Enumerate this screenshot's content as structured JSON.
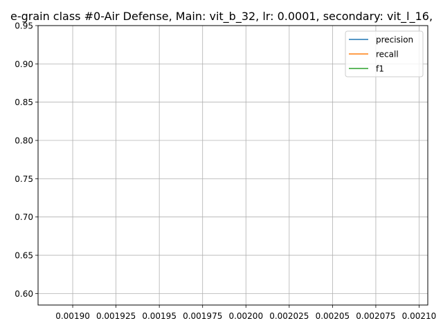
{
  "chart_data": {
    "type": "line",
    "title": "e-grain class #0-Air Defense, Main: vit_b_32, lr: 0.0001, secondary: vit_l_16,",
    "xlabel": "",
    "ylabel": "",
    "xlim": [
      0.00188,
      0.002105
    ],
    "ylim": [
      0.585,
      0.95
    ],
    "x_ticks": [
      0.0019,
      0.001925,
      0.00195,
      0.001975,
      0.002,
      0.002025,
      0.00205,
      0.002075,
      0.0021
    ],
    "x_tick_labels": [
      "0.00190",
      "0.001925",
      "0.00195",
      "0.001975",
      "0.00200",
      "0.002025",
      "0.00205",
      "0.002075",
      "0.00210"
    ],
    "y_ticks": [
      0.6,
      0.65,
      0.7,
      0.75,
      0.8,
      0.85,
      0.9,
      0.95
    ],
    "y_tick_labels": [
      "0.60",
      "0.65",
      "0.70",
      "0.75",
      "0.80",
      "0.85",
      "0.90",
      "0.95"
    ],
    "grid": true,
    "legend_position": "upper-right",
    "series": [
      {
        "name": "precision",
        "color": "#1f77b4",
        "x": [],
        "y": []
      },
      {
        "name": "recall",
        "color": "#ff7f0e",
        "x": [],
        "y": []
      },
      {
        "name": "f1",
        "color": "#2ca02c",
        "x": [],
        "y": []
      }
    ]
  }
}
